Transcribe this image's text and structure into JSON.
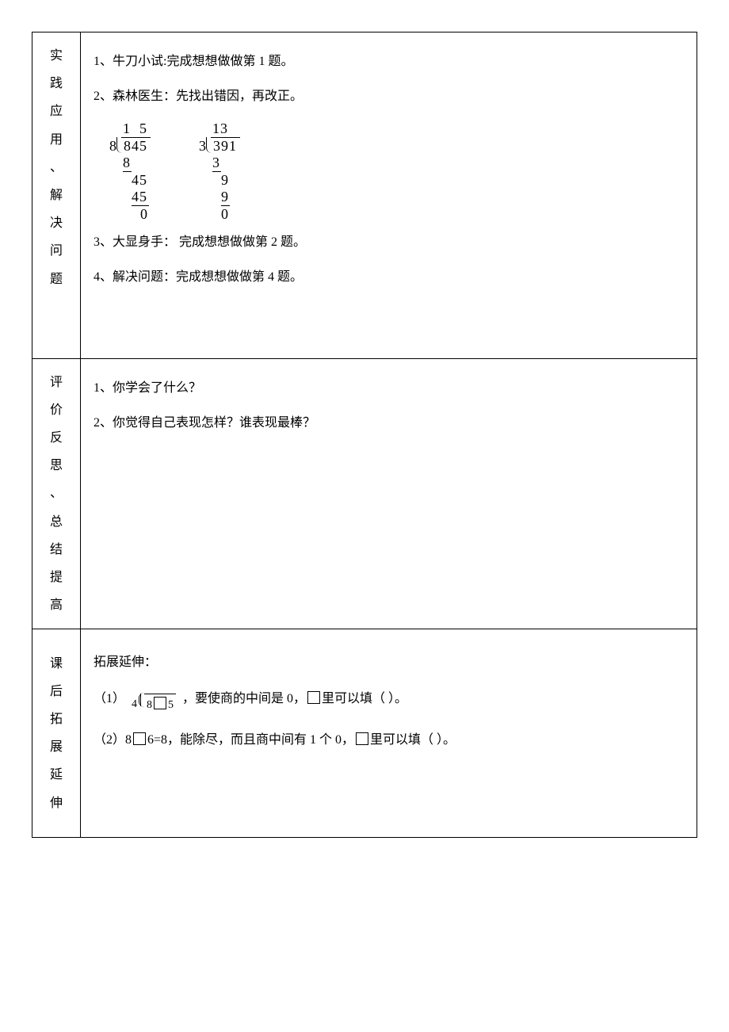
{
  "row1": {
    "side": [
      "实",
      "践",
      "应",
      "用",
      "、",
      "解",
      "决",
      "问",
      "题"
    ],
    "p1": "1、牛刀小试:完成想想做做第 1 题。",
    "p2": "2、森林医生：先找出错因，再改正。",
    "p3": "3、大显身手：  完成想想做做第 2 题。",
    "p4": "4、解决问题：完成想想做做第 4 题。",
    "ld1": {
      "divisor": "8",
      "dividend": "845",
      "quotient": "1  5",
      "steps": [
        {
          "text": "8",
          "ul": true,
          "pad": 0,
          "w": 1
        },
        {
          "text": "45",
          "ul": false,
          "pad": 1,
          "w": 2
        },
        {
          "text": "45",
          "ul": true,
          "pad": 1,
          "w": 2
        },
        {
          "text": "0",
          "ul": false,
          "pad": 2,
          "w": 1
        }
      ]
    },
    "ld2": {
      "divisor": "3",
      "dividend": "391",
      "quotient": "13 ",
      "steps": [
        {
          "text": "3",
          "ul": true,
          "pad": 0,
          "w": 1
        },
        {
          "text": "9",
          "ul": false,
          "pad": 1,
          "w": 1
        },
        {
          "text": "9",
          "ul": true,
          "pad": 1,
          "w": 1
        },
        {
          "text": "0",
          "ul": false,
          "pad": 1,
          "w": 1
        }
      ]
    }
  },
  "row2": {
    "side": [
      "评",
      "价",
      "反",
      "思",
      "、",
      "总",
      "结",
      "提",
      "高"
    ],
    "p1": "1、你学会了什么？",
    "p2": "2、你觉得自己表现怎样？谁表现最棒？"
  },
  "row3": {
    "side": [
      "课",
      "后",
      "拓",
      "展",
      "延",
      "伸"
    ],
    "title": "拓展延伸：",
    "item1_pre": "（1）",
    "item1_dvs": "4",
    "item1_dvd_a": "8",
    "item1_dvd_b": "5",
    "item1_post": "，要使商的中间是 0，",
    "item1_tail": "里可以填（            ）。",
    "item2_pre": "（2）8",
    "item2_mid": "6=8，能除尽，而且商中间有 1 个 0，",
    "item2_tail": "里可以填（            ）。"
  },
  "style": {
    "digitW": 11
  }
}
